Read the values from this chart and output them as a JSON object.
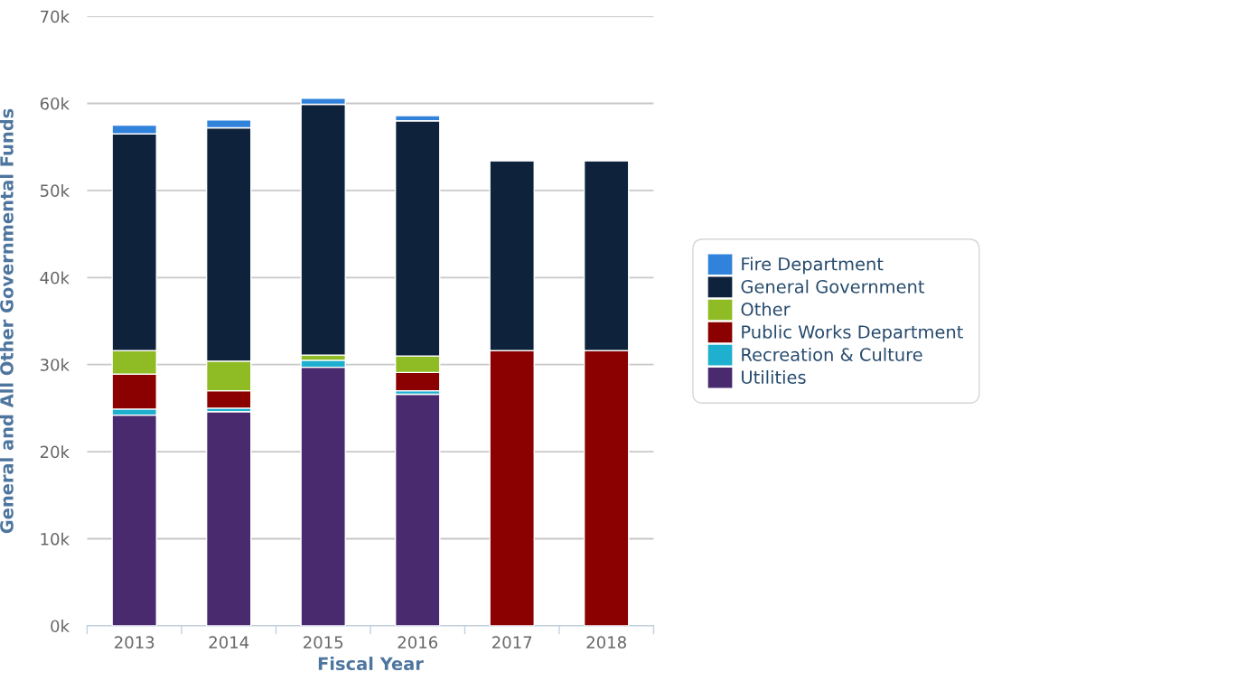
{
  "chart_data": {
    "type": "bar",
    "stacked": true,
    "xlabel": "Fiscal Year",
    "ylabel": "General and All Other Governmental Funds",
    "categories": [
      "2013",
      "2014",
      "2015",
      "2016",
      "2017",
      "2018"
    ],
    "series": [
      {
        "name": "Utilities",
        "color": "#4a2a6e",
        "values": [
          24.2,
          24.6,
          29.7,
          26.6,
          null,
          null
        ]
      },
      {
        "name": "Recreation & Culture",
        "color": "#1fb0d0",
        "values": [
          0.7,
          0.4,
          0.8,
          0.4,
          null,
          null
        ]
      },
      {
        "name": "Public Works Department",
        "color": "#8b0000",
        "values": [
          4.0,
          2.0,
          null,
          2.1,
          31.6,
          31.6
        ]
      },
      {
        "name": "Other",
        "color": "#8fbc24",
        "values": [
          2.7,
          3.4,
          0.6,
          1.9,
          null,
          null
        ]
      },
      {
        "name": "General Government",
        "color": "#0e233b",
        "values": [
          24.9,
          26.8,
          28.8,
          27.0,
          21.8,
          21.8
        ]
      },
      {
        "name": "Fire Department",
        "color": "#3182db",
        "values": [
          1.0,
          0.9,
          0.7,
          0.6,
          null,
          null
        ]
      }
    ],
    "ylim": [
      0,
      70
    ],
    "yticks": [
      {
        "value": 0,
        "label": "0k"
      },
      {
        "value": 10,
        "label": "10k"
      },
      {
        "value": 20,
        "label": "20k"
      },
      {
        "value": 30,
        "label": "30k"
      },
      {
        "value": 40,
        "label": "40k"
      },
      {
        "value": 50,
        "label": "50k"
      },
      {
        "value": 60,
        "label": "60k"
      },
      {
        "value": 70,
        "label": "70k"
      }
    ],
    "grid": "y",
    "legend": "right"
  }
}
